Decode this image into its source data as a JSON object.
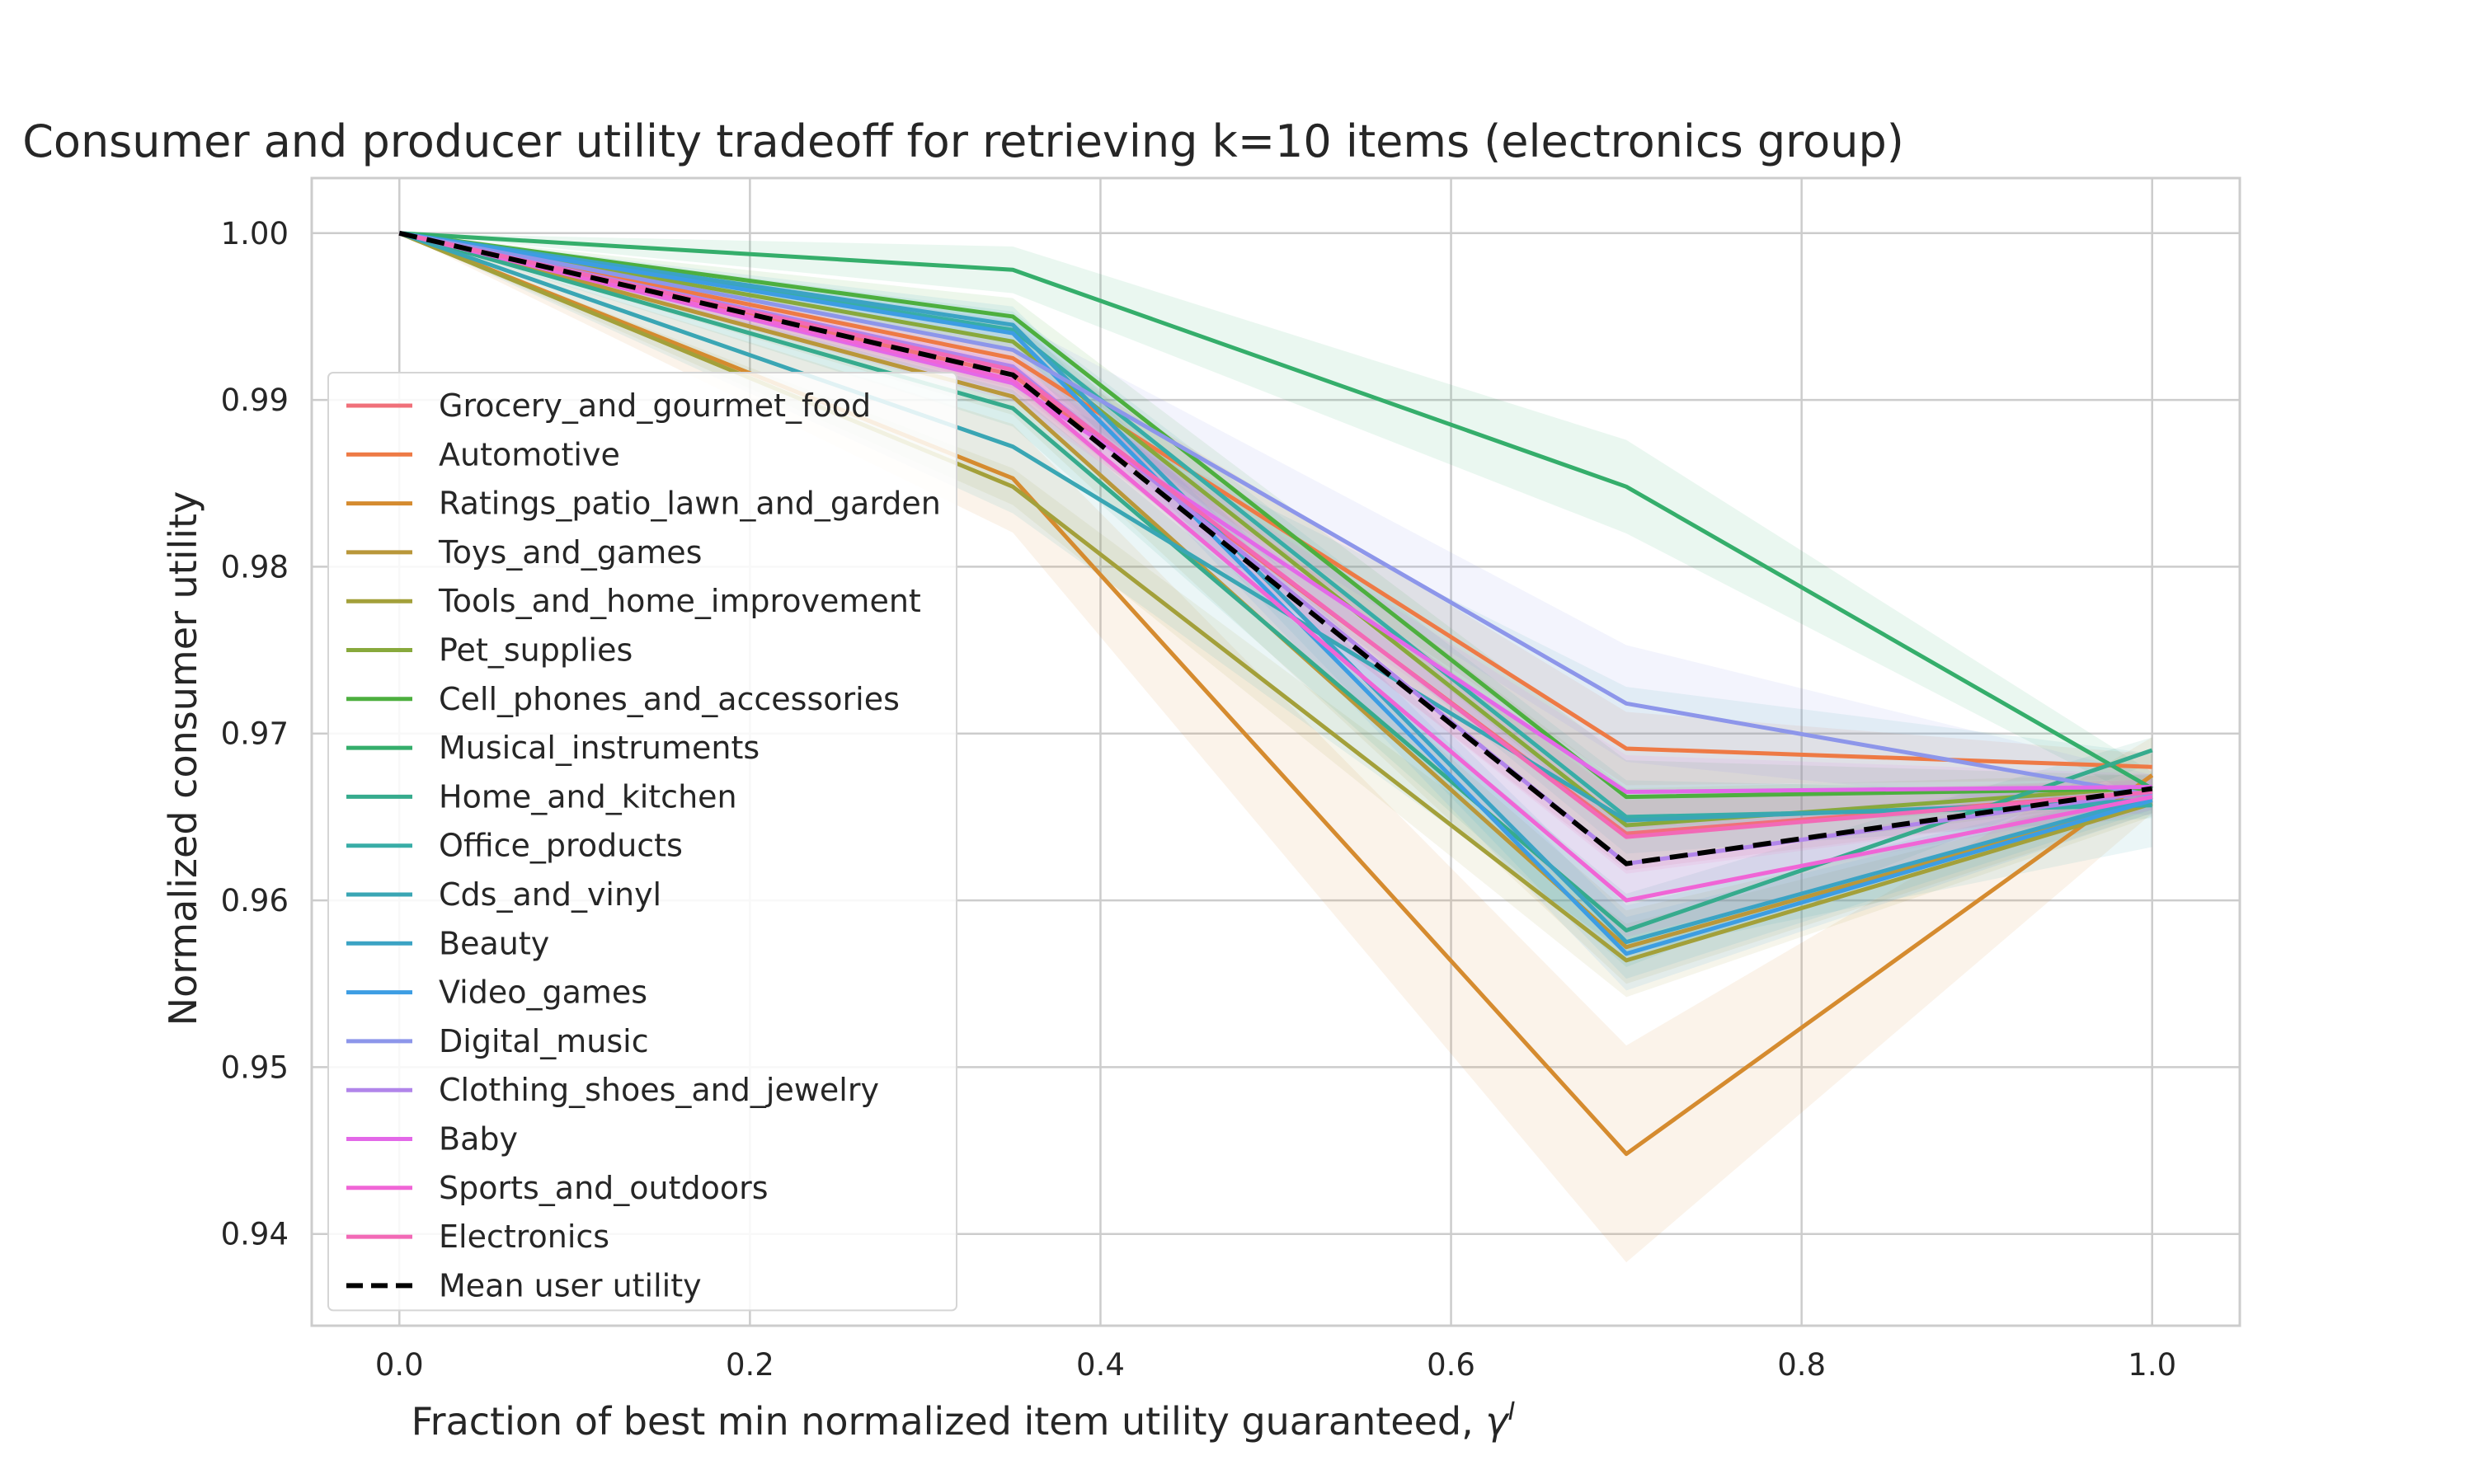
{
  "chart_data": {
    "type": "line",
    "title": "Consumer and producer utility tradeoff for retrieving k=10 items (electronics group)",
    "xlabel": "Fraction of best min normalized item utility guaranteed, ",
    "xlabel_symbol": "γ",
    "xlabel_symbol_sup": "I",
    "ylabel": "Normalized consumer utility",
    "x": [
      0.0,
      0.35,
      0.7,
      1.0
    ],
    "xlim": [
      -0.05,
      1.05
    ],
    "ylim": [
      0.9345,
      1.0033
    ],
    "xticks": [
      "0.0",
      "0.2",
      "0.4",
      "0.6",
      "0.8",
      "1.0"
    ],
    "xtick_values": [
      0.0,
      0.2,
      0.4,
      0.6,
      0.8,
      1.0
    ],
    "yticks": [
      "0.94",
      "0.95",
      "0.96",
      "0.97",
      "0.98",
      "0.99",
      "1.00"
    ],
    "ytick_values": [
      0.94,
      0.95,
      0.96,
      0.97,
      0.98,
      0.99,
      1.0
    ],
    "grid": true,
    "legend_position": "center-left",
    "series": [
      {
        "name": "Grocery_and_gourmet_food",
        "color": "#f0707a",
        "values": [
          1.0,
          0.9915,
          0.964,
          0.9665
        ]
      },
      {
        "name": "Automotive",
        "color": "#ee7a45",
        "values": [
          1.0,
          0.9925,
          0.9691,
          0.968
        ]
      },
      {
        "name": "Ratings_patio_lawn_and_garden",
        "color": "#d58b2f",
        "values": [
          1.0,
          0.9853,
          0.9448,
          0.9675
        ],
        "band": 0.0065
      },
      {
        "name": "Toys_and_games",
        "color": "#b9973a",
        "values": [
          1.0,
          0.9902,
          0.9572,
          0.966
        ]
      },
      {
        "name": "Tools_and_home_improvement",
        "color": "#a3a03a",
        "values": [
          1.0,
          0.9848,
          0.9564,
          0.9658
        ]
      },
      {
        "name": "Pet_supplies",
        "color": "#88a93c",
        "values": [
          1.0,
          0.9935,
          0.9645,
          0.9668
        ]
      },
      {
        "name": "Cell_phones_and_accessories",
        "color": "#4daf3f",
        "values": [
          1.0,
          0.995,
          0.9662,
          0.9667
        ]
      },
      {
        "name": "Musical_instruments",
        "color": "#35ae6b",
        "values": [
          1.0,
          0.9978,
          0.9848,
          0.9667
        ],
        "band": 0.0028
      },
      {
        "name": "Home_and_kitchen",
        "color": "#36ab8d",
        "values": [
          1.0,
          0.9895,
          0.9582,
          0.969
        ]
      },
      {
        "name": "Office_products",
        "color": "#38ada7",
        "values": [
          1.0,
          0.9942,
          0.965,
          0.9657
        ]
      },
      {
        "name": "Cds_and_vinyl",
        "color": "#3aa6b4",
        "values": [
          1.0,
          0.9872,
          0.9648,
          0.966
        ],
        "band": 0.008
      },
      {
        "name": "Beauty",
        "color": "#3ba3c4",
        "values": [
          1.0,
          0.9945,
          0.9575,
          0.9662
        ]
      },
      {
        "name": "Video_games",
        "color": "#3d9de3",
        "values": [
          1.0,
          0.994,
          0.9568,
          0.966
        ]
      },
      {
        "name": "Digital_music",
        "color": "#8d96ea",
        "values": [
          1.0,
          0.993,
          0.9718,
          0.9663
        ],
        "band": 0.0035
      },
      {
        "name": "Clothing_shoes_and_jewelry",
        "color": "#b185ea",
        "values": [
          1.0,
          0.992,
          0.9622,
          0.9665
        ]
      },
      {
        "name": "Baby",
        "color": "#e368e8",
        "values": [
          1.0,
          0.991,
          0.9665,
          0.9668
        ]
      },
      {
        "name": "Sports_and_outdoors",
        "color": "#f065d6",
        "values": [
          1.0,
          0.9912,
          0.96,
          0.9662
        ]
      },
      {
        "name": "Electronics",
        "color": "#f269b6",
        "values": [
          1.0,
          0.9918,
          0.9638,
          0.9665
        ]
      }
    ],
    "mean_series": {
      "name": "Mean user utility",
      "color": "#000000",
      "values": [
        1.0,
        0.9915,
        0.9622,
        0.9667
      ]
    }
  }
}
